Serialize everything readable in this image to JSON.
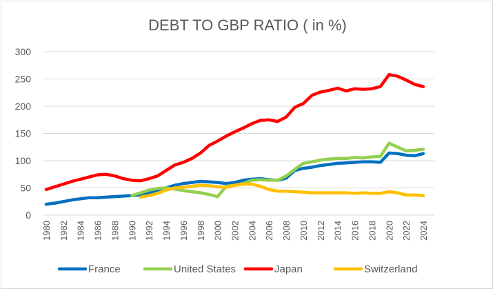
{
  "chart_data": {
    "type": "line",
    "title": "DEBT TO GBP RATIO ( in %)",
    "xlabel": "",
    "ylabel": "",
    "ylim": [
      0,
      300
    ],
    "yticks": [
      0,
      50,
      100,
      150,
      200,
      250,
      300
    ],
    "grid": true,
    "legend": "bottom",
    "x": [
      1980,
      1981,
      1982,
      1983,
      1984,
      1985,
      1986,
      1987,
      1988,
      1989,
      1990,
      1991,
      1992,
      1993,
      1994,
      1995,
      1996,
      1997,
      1998,
      1999,
      2000,
      2001,
      2002,
      2003,
      2004,
      2005,
      2006,
      2007,
      2008,
      2009,
      2010,
      2011,
      2012,
      2013,
      2014,
      2015,
      2016,
      2017,
      2018,
      2019,
      2020,
      2021,
      2022,
      2023,
      2024
    ],
    "xtick_labels": [
      "1980",
      "1982",
      "1984",
      "1986",
      "1988",
      "1990",
      "1992",
      "1994",
      "1996",
      "1998",
      "2000",
      "2002",
      "2004",
      "2006",
      "2008",
      "2010",
      "2012",
      "2014",
      "2016",
      "2018",
      "2020",
      "2022",
      "2024"
    ],
    "series": [
      {
        "name": "France",
        "color": "#0070c0",
        "values": [
          20,
          22,
          25,
          28,
          30,
          32,
          32,
          33,
          34,
          35,
          36,
          37,
          40,
          45,
          50,
          55,
          58,
          60,
          62,
          61,
          60,
          58,
          60,
          64,
          66,
          67,
          65,
          64,
          68,
          82,
          86,
          88,
          91,
          93,
          95,
          96,
          97,
          98,
          98,
          97,
          114,
          113,
          110,
          109,
          113
        ]
      },
      {
        "name": "United States",
        "color": "#92d050",
        "values": [
          null,
          null,
          null,
          null,
          null,
          null,
          null,
          null,
          null,
          null,
          36,
          41,
          46,
          49,
          50,
          48,
          45,
          43,
          41,
          38,
          34,
          53,
          55,
          58,
          64,
          65,
          64,
          64,
          72,
          84,
          95,
          98,
          101,
          103,
          104,
          104,
          106,
          105,
          107,
          108,
          132,
          125,
          118,
          119,
          121
        ]
      },
      {
        "name": "Japan",
        "color": "#ff0000",
        "values": [
          47,
          52,
          57,
          62,
          66,
          70,
          74,
          75,
          72,
          67,
          64,
          63,
          67,
          72,
          82,
          92,
          97,
          104,
          114,
          128,
          136,
          145,
          153,
          160,
          168,
          174,
          175,
          172,
          180,
          198,
          205,
          220,
          226,
          229,
          233,
          228,
          232,
          231,
          232,
          236,
          258,
          255,
          248,
          240,
          236
        ]
      },
      {
        "name": "Switzerland",
        "color": "#ffc000",
        "values": [
          null,
          null,
          null,
          null,
          null,
          null,
          null,
          null,
          null,
          null,
          null,
          33,
          36,
          40,
          46,
          50,
          51,
          53,
          55,
          54,
          52,
          51,
          55,
          57,
          57,
          53,
          47,
          44,
          44,
          43,
          42,
          41,
          41,
          41,
          41,
          41,
          40,
          41,
          40,
          40,
          43,
          41,
          37,
          37,
          36
        ]
      }
    ]
  }
}
